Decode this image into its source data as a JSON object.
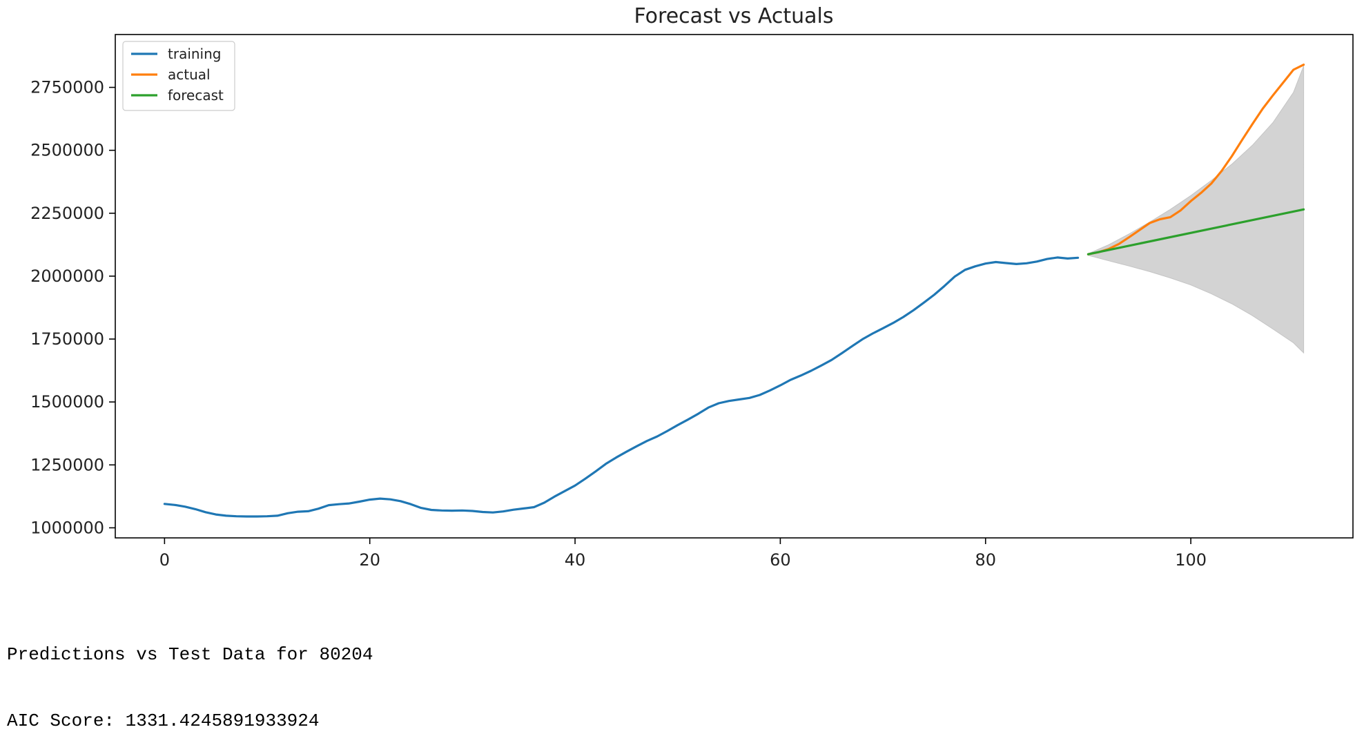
{
  "chart_data": {
    "type": "line",
    "title": "Forecast vs Actuals",
    "xlabel": "",
    "ylabel": "",
    "xlim": [
      -4.8,
      115.8
    ],
    "ylim": [
      960000,
      2960000
    ],
    "xticks": [
      0,
      20,
      40,
      60,
      80,
      100
    ],
    "yticks": [
      1000000,
      1250000,
      1500000,
      1750000,
      2000000,
      2250000,
      2500000,
      2750000
    ],
    "legend_position": "top-left",
    "grid": false,
    "series": [
      {
        "name": "training",
        "color": "#1f77b4",
        "x": [
          0,
          1,
          2,
          3,
          4,
          5,
          6,
          7,
          8,
          9,
          10,
          11,
          12,
          13,
          14,
          15,
          16,
          17,
          18,
          19,
          20,
          21,
          22,
          23,
          24,
          25,
          26,
          27,
          28,
          29,
          30,
          31,
          32,
          33,
          34,
          35,
          36,
          37,
          38,
          39,
          40,
          41,
          42,
          43,
          44,
          45,
          46,
          47,
          48,
          49,
          50,
          51,
          52,
          53,
          54,
          55,
          56,
          57,
          58,
          59,
          60,
          61,
          62,
          63,
          64,
          65,
          66,
          67,
          68,
          69,
          70,
          71,
          72,
          73,
          74,
          75,
          76,
          77,
          78,
          79,
          80,
          81,
          82,
          83,
          84,
          85,
          86,
          87,
          88,
          89
        ],
        "y": [
          1095000,
          1091000,
          1084000,
          1074000,
          1062000,
          1053000,
          1048000,
          1046000,
          1045000,
          1045000,
          1046000,
          1048000,
          1058000,
          1064000,
          1066000,
          1076000,
          1090000,
          1094000,
          1097000,
          1104000,
          1112000,
          1116000,
          1113000,
          1106000,
          1094000,
          1079000,
          1071000,
          1069000,
          1068000,
          1069000,
          1067000,
          1063000,
          1061000,
          1065000,
          1072000,
          1077000,
          1082000,
          1100000,
          1124000,
          1146000,
          1168000,
          1195000,
          1224000,
          1254000,
          1279000,
          1302000,
          1324000,
          1345000,
          1363000,
          1385000,
          1408000,
          1430000,
          1453000,
          1478000,
          1495000,
          1504000,
          1510000,
          1516000,
          1528000,
          1546000,
          1566000,
          1588000,
          1605000,
          1624000,
          1645000,
          1667000,
          1694000,
          1722000,
          1749000,
          1772000,
          1793000,
          1814000,
          1838000,
          1865000,
          1895000,
          1926000,
          1961000,
          1998000,
          2025000,
          2039000,
          2050000,
          2056000,
          2052000,
          2048000,
          2051000,
          2058000,
          2068000,
          2074000,
          2070000,
          2073000
        ]
      },
      {
        "name": "actual",
        "color": "#ff7f0e",
        "x": [
          90,
          91,
          92,
          93,
          94,
          95,
          96,
          97,
          98,
          99,
          100,
          101,
          102,
          103,
          104,
          105,
          106,
          107,
          108,
          109,
          110,
          111
        ],
        "y": [
          2087000,
          2095000,
          2108000,
          2128000,
          2155000,
          2183000,
          2211000,
          2226000,
          2234000,
          2261000,
          2298000,
          2331000,
          2368000,
          2418000,
          2477000,
          2541000,
          2604000,
          2665000,
          2718000,
          2769000,
          2820000,
          2840000
        ]
      },
      {
        "name": "forecast",
        "color": "#2ca02c",
        "x": [
          90,
          111
        ],
        "y": [
          2087000,
          2265000
        ]
      }
    ],
    "confidence_interval": {
      "color": "#d3d3d3",
      "x": [
        90,
        92,
        94,
        96,
        98,
        100,
        102,
        104,
        106,
        108,
        110,
        111
      ],
      "upper": [
        2089000,
        2125000,
        2168000,
        2215000,
        2265000,
        2320000,
        2380000,
        2445000,
        2520000,
        2610000,
        2730000,
        2835000
      ],
      "lower": [
        2083000,
        2061000,
        2040000,
        2018000,
        1993000,
        1965000,
        1930000,
        1890000,
        1843000,
        1790000,
        1735000,
        1695000
      ]
    }
  },
  "output_text": {
    "line1": "Predictions vs Test Data for 80204",
    "line2": "AIC Score: 1331.4245891933924"
  }
}
